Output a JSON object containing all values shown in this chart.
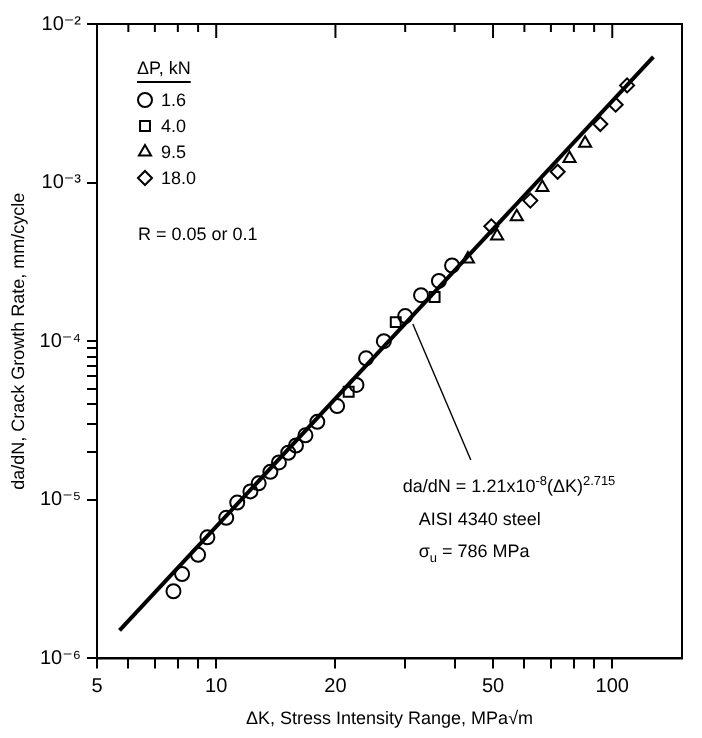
{
  "chart_data": {
    "type": "scatter",
    "log": "xy",
    "xlabel": "ΔK, Stress Intensity Range, MPa√m",
    "ylabel": "da/dN, Crack Growth Rate, mm/cycle",
    "legend_title": "ΔP, kN",
    "legend": "top left",
    "grid": false,
    "xlim": [
      5,
      150
    ],
    "ylim": [
      1e-06,
      0.01
    ],
    "xticks": [
      5,
      {
        "value": 6,
        "label": null
      },
      {
        "value": 7,
        "label": null
      },
      {
        "value": 8,
        "label": null
      },
      {
        "value": 9,
        "label": null
      },
      10,
      20,
      {
        "value": 30,
        "label": null
      },
      {
        "value": 40,
        "label": null
      },
      50,
      {
        "value": 60,
        "label": null
      },
      {
        "value": 70,
        "label": null
      },
      {
        "value": 80,
        "label": null
      },
      {
        "value": 90,
        "label": null
      },
      100
    ],
    "yticks": [
      {
        "value": 1e-06,
        "label": "10⁻⁶"
      },
      {
        "value": 1e-05,
        "label": "10⁻⁵"
      },
      {
        "value": 2e-05,
        "label": null
      },
      {
        "value": 3e-05,
        "label": null
      },
      {
        "value": 4e-05,
        "label": null
      },
      {
        "value": 5e-05,
        "label": null
      },
      {
        "value": 6e-05,
        "label": null
      },
      {
        "value": 7e-05,
        "label": null
      },
      {
        "value": 8e-05,
        "label": null
      },
      {
        "value": 9e-05,
        "label": null
      },
      {
        "value": 0.0001,
        "label": "10⁻⁴"
      },
      {
        "value": 0.001,
        "label": "10⁻³"
      },
      {
        "value": 0.01,
        "label": "10⁻²"
      }
    ],
    "series": [
      {
        "name": "1.6",
        "color": "#000000",
        "marker": "circle",
        "x": [
          7.8,
          8.2,
          9.0,
          9.5,
          10.6,
          11.3,
          12.2,
          12.8,
          13.7,
          14.4,
          15.2,
          15.9,
          16.8,
          18.0,
          20.2,
          22.6,
          23.9,
          26.5,
          30.0,
          32.9,
          36.5,
          39.4
        ],
        "values": [
          2.65e-06,
          3.4e-06,
          4.5e-06,
          5.8e-06,
          7.7e-06,
          9.6e-06,
          1.13e-05,
          1.27e-05,
          1.5e-05,
          1.72e-05,
          1.98e-05,
          2.2e-05,
          2.55e-05,
          3.1e-05,
          3.9e-05,
          5.3e-05,
          7.8e-05,
          0.0001,
          0.000144,
          0.000195,
          0.00024,
          0.0003
        ]
      },
      {
        "name": "4.0",
        "color": "#000000",
        "marker": "square",
        "x": [
          21.6,
          28.4,
          35.6
        ],
        "values": [
          4.8e-05,
          0.000132,
          0.00019
        ]
      },
      {
        "name": "9.5",
        "color": "#000000",
        "marker": "triangle",
        "x": [
          43.2,
          51.2,
          57.4,
          66.6,
          78.0,
          85.4
        ],
        "values": [
          0.00033,
          0.00046,
          0.00061,
          0.00093,
          0.00142,
          0.00177
        ]
      },
      {
        "name": "18.0",
        "color": "#000000",
        "marker": "diamond",
        "x": [
          49.5,
          62.1,
          72.8,
          93.3,
          102,
          109
        ],
        "values": [
          0.00053,
          0.00077,
          0.00117,
          0.00234,
          0.0031,
          0.0041
        ]
      },
      {
        "type": "line",
        "color": "#000000",
        "marker": "none",
        "line_style": "solid",
        "x": [
          5.7,
          127
        ],
        "values": [
          1.5e-06,
          0.0062
        ]
      }
    ],
    "annotations": [
      "R = 0.05 or 0.1",
      {
        "text": "da/dN = 1.21x10$^{-8}$(ΔK)$^{2.715}$",
        "x": 31,
        "y": 0.000136
      },
      "AISI 4340 steel",
      "σ$_{u}$ = 786 MPa"
    ]
  }
}
